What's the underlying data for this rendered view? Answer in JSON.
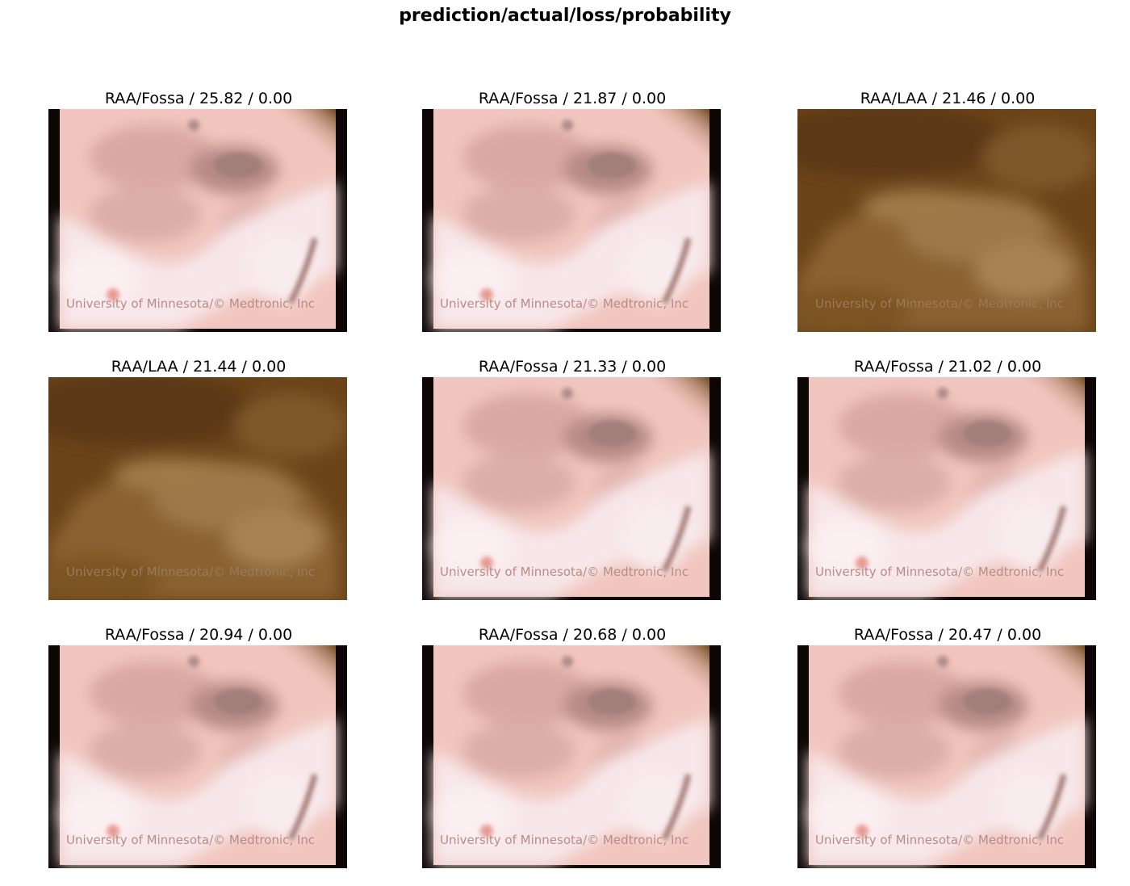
{
  "figure": {
    "title": "prediction/actual/loss/probability"
  },
  "panels": [
    {
      "label": "RAA/Fossa / 25.82 / 0.00",
      "watermark": "University of Minnesota/© Medtronic, Inc",
      "tone": "pink"
    },
    {
      "label": "RAA/Fossa / 21.87 / 0.00",
      "watermark": "University of Minnesota/© Medtronic, Inc",
      "tone": "pink"
    },
    {
      "label": "RAA/LAA / 21.46 / 0.00",
      "watermark": "University of Minnesota/© Medtronic, Inc",
      "tone": "brown"
    },
    {
      "label": "RAA/LAA / 21.44 / 0.00",
      "watermark": "University of Minnesota/© Medtronic, Inc",
      "tone": "brown"
    },
    {
      "label": "RAA/Fossa / 21.33 / 0.00",
      "watermark": "University of Minnesota/© Medtronic, Inc",
      "tone": "pink"
    },
    {
      "label": "RAA/Fossa / 21.02 / 0.00",
      "watermark": "University of Minnesota/© Medtronic, Inc",
      "tone": "pink"
    },
    {
      "label": "RAA/Fossa / 20.94 / 0.00",
      "watermark": "University of Minnesota/© Medtronic, Inc",
      "tone": "pink"
    },
    {
      "label": "RAA/Fossa / 20.68 / 0.00",
      "watermark": "University of Minnesota/© Medtronic, Inc",
      "tone": "pink"
    },
    {
      "label": "RAA/Fossa / 20.47 / 0.00",
      "watermark": "University of Minnesota/© Medtronic, Inc",
      "tone": "pink"
    }
  ]
}
